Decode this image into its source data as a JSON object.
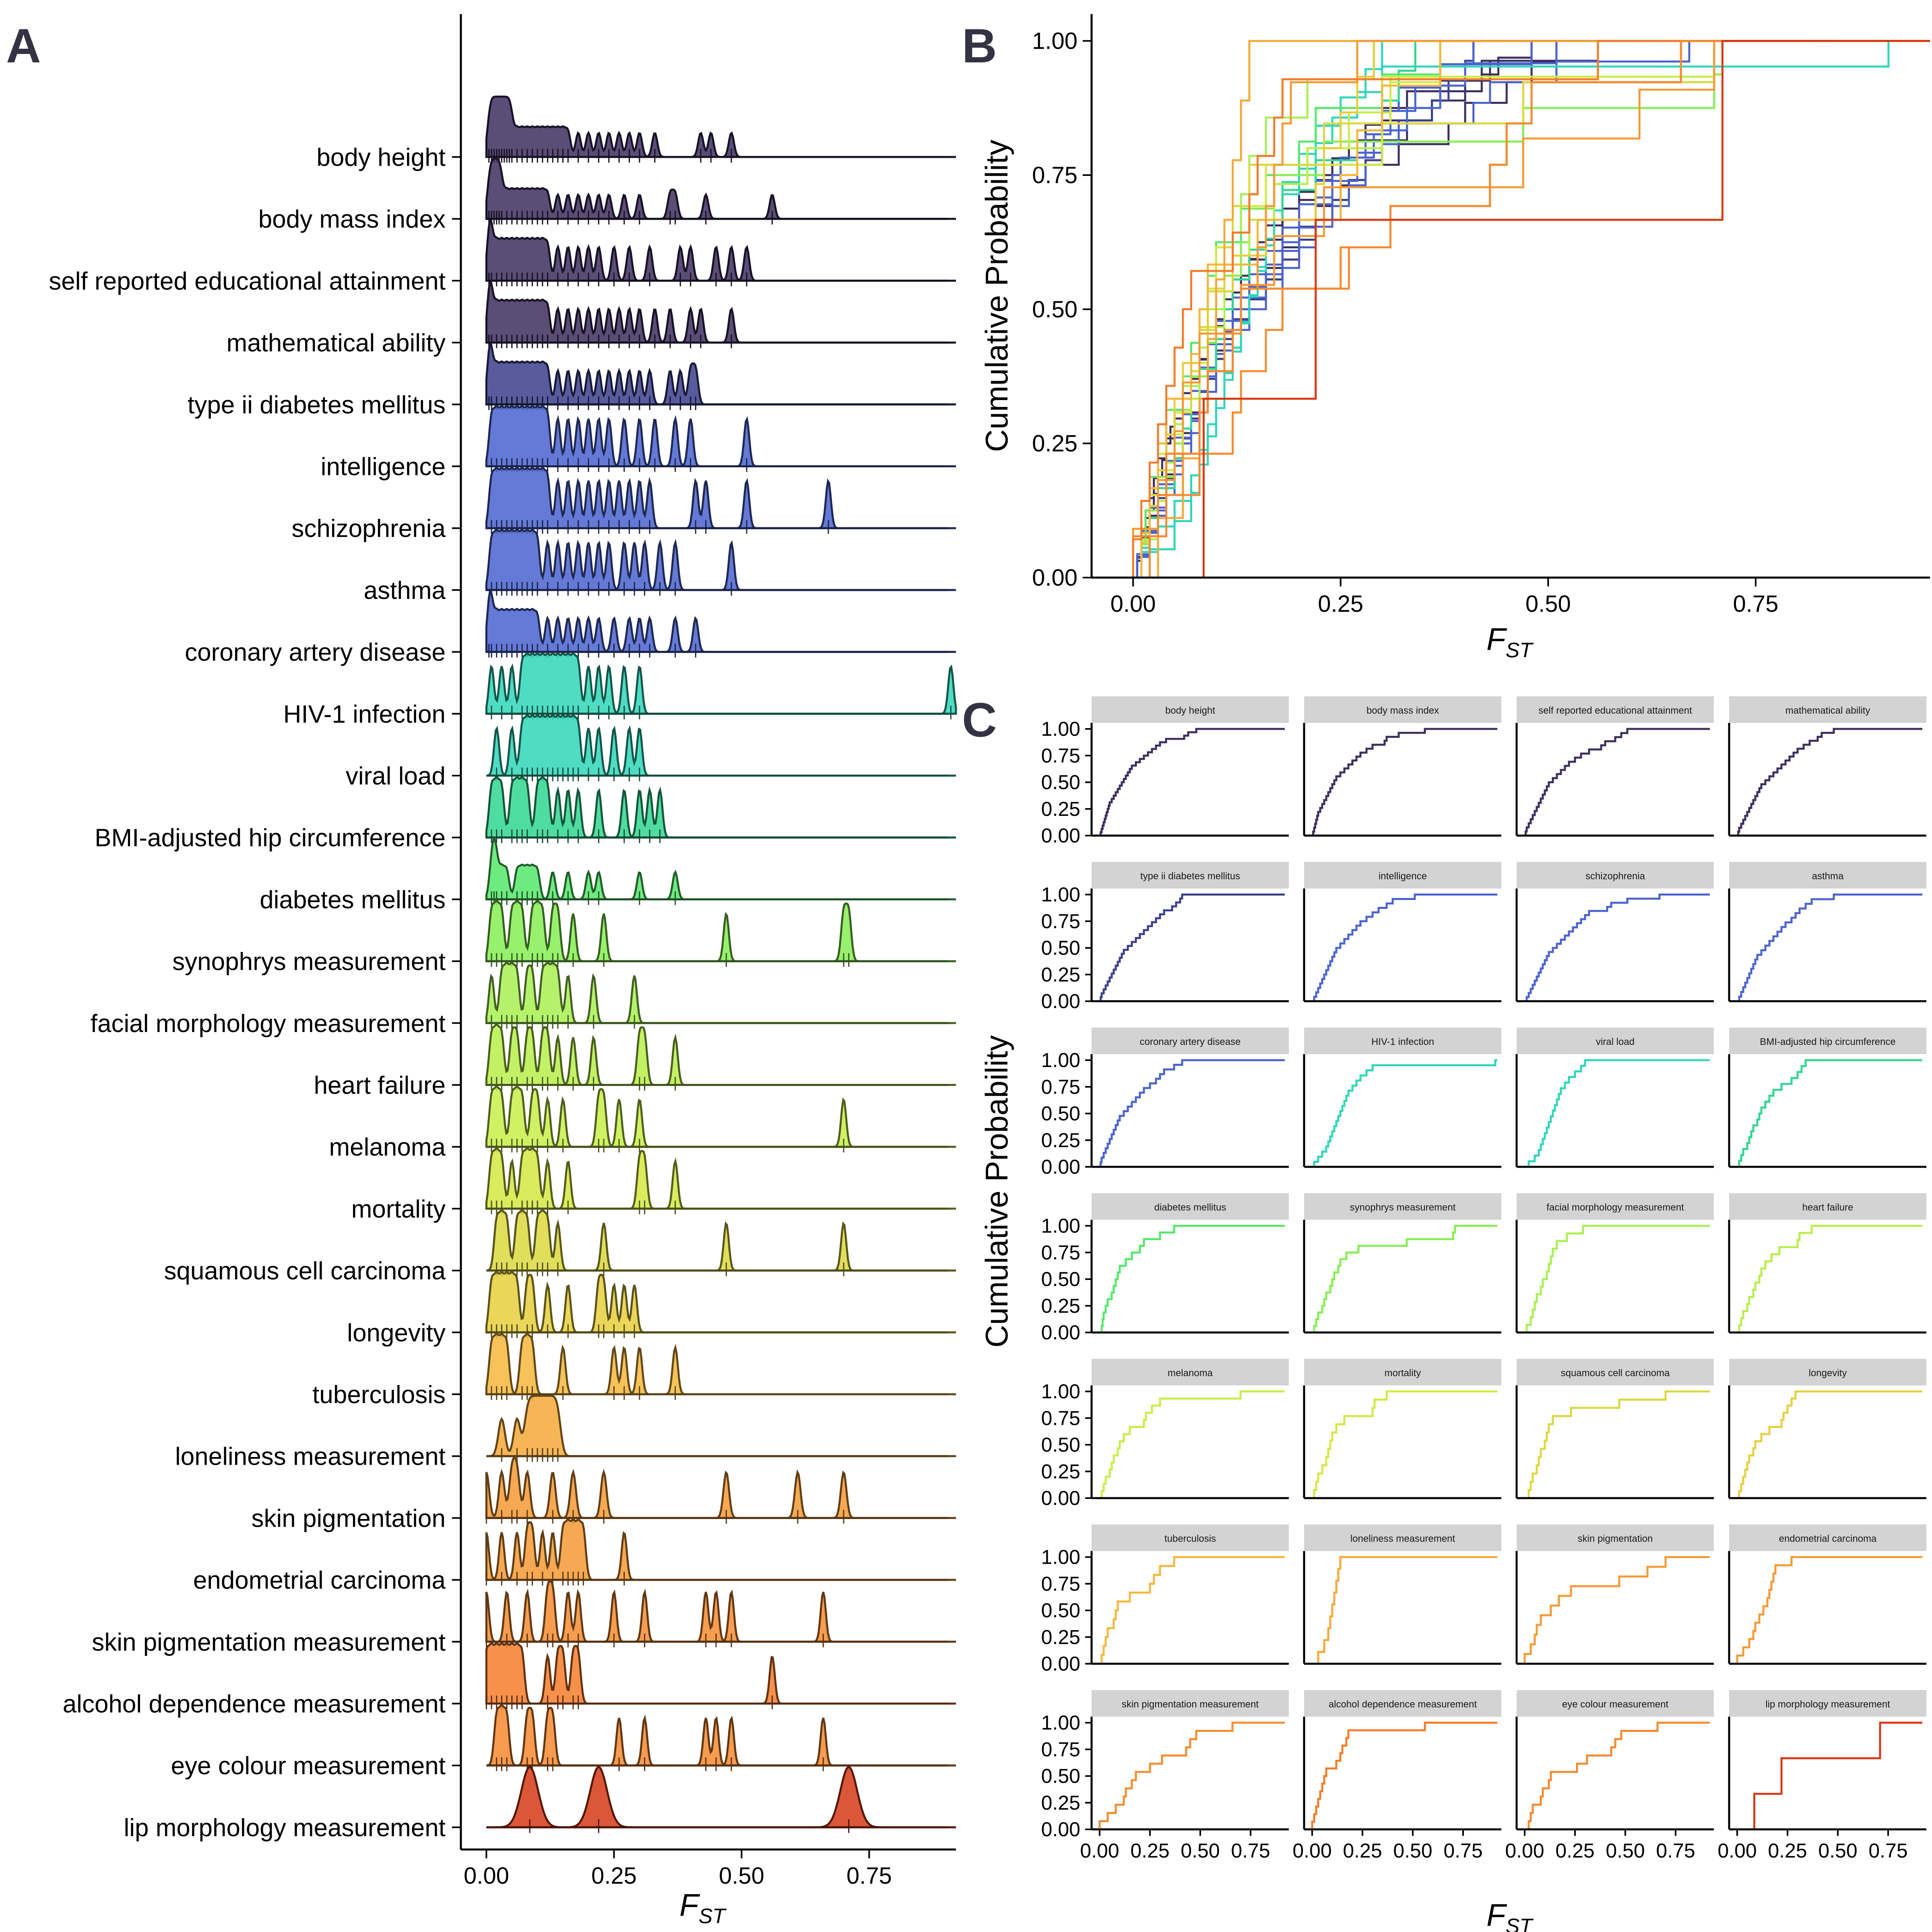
{
  "panel_letters": [
    "A",
    "B",
    "C"
  ],
  "chart_data": [
    {
      "panel": "A",
      "type": "area",
      "subtype": "ridgeline density with rug",
      "xlabel_main": "F",
      "xlabel_sub": "ST",
      "xlim": [
        -0.05,
        0.92
      ],
      "xticks": [
        "0.00",
        "0.25",
        "0.50",
        "0.75"
      ],
      "xtick_values": [
        0,
        0.25,
        0.5,
        0.75
      ],
      "traits": [
        {
          "name": "body height",
          "color": "#3d2e5e",
          "values": [
            0.005,
            0.01,
            0.015,
            0.02,
            0.025,
            0.03,
            0.035,
            0.04,
            0.045,
            0.05,
            0.06,
            0.07,
            0.08,
            0.09,
            0.1,
            0.11,
            0.12,
            0.13,
            0.14,
            0.15,
            0.16,
            0.18,
            0.2,
            0.22,
            0.24,
            0.26,
            0.28,
            0.3,
            0.33,
            0.42,
            0.44,
            0.48
          ]
        },
        {
          "name": "body mass index",
          "color": "#3d2e5e",
          "values": [
            0.005,
            0.01,
            0.015,
            0.02,
            0.025,
            0.03,
            0.04,
            0.05,
            0.06,
            0.07,
            0.08,
            0.09,
            0.1,
            0.11,
            0.12,
            0.14,
            0.16,
            0.18,
            0.2,
            0.22,
            0.24,
            0.27,
            0.3,
            0.36,
            0.37,
            0.43,
            0.56
          ]
        },
        {
          "name": "self reported educational attainment",
          "color": "#3d2e5e",
          "values": [
            0.005,
            0.01,
            0.02,
            0.03,
            0.04,
            0.05,
            0.06,
            0.07,
            0.08,
            0.09,
            0.1,
            0.11,
            0.12,
            0.14,
            0.16,
            0.18,
            0.2,
            0.22,
            0.25,
            0.28,
            0.32,
            0.38,
            0.4,
            0.45,
            0.48,
            0.51
          ]
        },
        {
          "name": "mathematical ability",
          "color": "#3d2e5e",
          "values": [
            0.005,
            0.01,
            0.02,
            0.03,
            0.04,
            0.05,
            0.06,
            0.07,
            0.08,
            0.09,
            0.1,
            0.11,
            0.12,
            0.14,
            0.16,
            0.18,
            0.2,
            0.22,
            0.24,
            0.26,
            0.28,
            0.3,
            0.33,
            0.36,
            0.4,
            0.42,
            0.48
          ]
        },
        {
          "name": "type ii diabetes mellitus",
          "color": "#3b3f8c",
          "values": [
            0.005,
            0.01,
            0.02,
            0.03,
            0.04,
            0.05,
            0.06,
            0.07,
            0.08,
            0.09,
            0.1,
            0.11,
            0.12,
            0.14,
            0.16,
            0.18,
            0.2,
            0.22,
            0.24,
            0.26,
            0.28,
            0.3,
            0.32,
            0.36,
            0.38,
            0.4,
            0.41
          ]
        },
        {
          "name": "intelligence",
          "color": "#4a63cf",
          "values": [
            0.01,
            0.02,
            0.03,
            0.04,
            0.05,
            0.06,
            0.07,
            0.08,
            0.09,
            0.1,
            0.11,
            0.12,
            0.14,
            0.16,
            0.18,
            0.2,
            0.22,
            0.24,
            0.27,
            0.3,
            0.33,
            0.37,
            0.4,
            0.51
          ]
        },
        {
          "name": "schizophrenia",
          "color": "#4a63cf",
          "values": [
            0.01,
            0.02,
            0.03,
            0.04,
            0.05,
            0.06,
            0.07,
            0.08,
            0.09,
            0.1,
            0.11,
            0.12,
            0.14,
            0.16,
            0.18,
            0.2,
            0.22,
            0.24,
            0.26,
            0.28,
            0.3,
            0.32,
            0.41,
            0.43,
            0.51,
            0.67
          ]
        },
        {
          "name": "asthma",
          "color": "#4a63cf",
          "values": [
            0.01,
            0.02,
            0.03,
            0.04,
            0.05,
            0.06,
            0.07,
            0.08,
            0.09,
            0.1,
            0.12,
            0.14,
            0.16,
            0.18,
            0.2,
            0.22,
            0.24,
            0.27,
            0.29,
            0.31,
            0.34,
            0.37,
            0.48
          ]
        },
        {
          "name": "coronary artery disease",
          "color": "#4a63cf",
          "values": [
            0.005,
            0.01,
            0.02,
            0.03,
            0.04,
            0.05,
            0.06,
            0.07,
            0.08,
            0.09,
            0.1,
            0.12,
            0.14,
            0.16,
            0.18,
            0.2,
            0.22,
            0.25,
            0.28,
            0.3,
            0.32,
            0.37,
            0.41
          ]
        },
        {
          "name": "HIV-1 infection",
          "color": "#2fd6b8",
          "values": [
            0.01,
            0.03,
            0.05,
            0.07,
            0.08,
            0.09,
            0.1,
            0.11,
            0.12,
            0.13,
            0.14,
            0.15,
            0.16,
            0.17,
            0.18,
            0.2,
            0.22,
            0.24,
            0.27,
            0.3,
            0.91
          ]
        },
        {
          "name": "viral load",
          "color": "#2fd6b8",
          "values": [
            0.02,
            0.05,
            0.07,
            0.08,
            0.09,
            0.1,
            0.11,
            0.12,
            0.13,
            0.14,
            0.15,
            0.16,
            0.17,
            0.18,
            0.2,
            0.22,
            0.25,
            0.28,
            0.3
          ]
        },
        {
          "name": "BMI-adjusted hip circumference",
          "color": "#30d690",
          "values": [
            0.01,
            0.02,
            0.03,
            0.05,
            0.06,
            0.07,
            0.08,
            0.1,
            0.11,
            0.12,
            0.14,
            0.16,
            0.18,
            0.22,
            0.27,
            0.3,
            0.32,
            0.34
          ]
        },
        {
          "name": "diabetes mellitus",
          "color": "#55e86a",
          "values": [
            0.01,
            0.015,
            0.02,
            0.03,
            0.04,
            0.06,
            0.07,
            0.08,
            0.09,
            0.1,
            0.13,
            0.16,
            0.2,
            0.22,
            0.3,
            0.37
          ]
        },
        {
          "name": "synophrys measurement",
          "color": "#86ee52",
          "values": [
            0.01,
            0.02,
            0.03,
            0.05,
            0.06,
            0.07,
            0.09,
            0.1,
            0.11,
            0.13,
            0.14,
            0.17,
            0.23,
            0.47,
            0.7,
            0.71
          ]
        },
        {
          "name": "facial morphology measurement",
          "color": "#a8f052",
          "values": [
            0.01,
            0.03,
            0.04,
            0.05,
            0.06,
            0.08,
            0.09,
            0.11,
            0.12,
            0.13,
            0.14,
            0.16,
            0.21,
            0.29
          ]
        },
        {
          "name": "heart failure",
          "color": "#b8ee4a",
          "values": [
            0.01,
            0.02,
            0.03,
            0.05,
            0.06,
            0.08,
            0.09,
            0.11,
            0.12,
            0.14,
            0.17,
            0.21,
            0.3,
            0.31,
            0.37
          ]
        },
        {
          "name": "melanoma",
          "color": "#c8ee48",
          "values": [
            0.01,
            0.02,
            0.03,
            0.05,
            0.06,
            0.07,
            0.09,
            0.1,
            0.12,
            0.15,
            0.22,
            0.23,
            0.26,
            0.3,
            0.7
          ]
        },
        {
          "name": "mortality",
          "color": "#d4e842",
          "values": [
            0.01,
            0.02,
            0.03,
            0.05,
            0.07,
            0.08,
            0.09,
            0.1,
            0.12,
            0.16,
            0.3,
            0.31,
            0.37
          ]
        },
        {
          "name": "squamous cell carcinoma",
          "color": "#dcd83e",
          "values": [
            0.02,
            0.03,
            0.04,
            0.06,
            0.07,
            0.08,
            0.1,
            0.11,
            0.12,
            0.14,
            0.23,
            0.47,
            0.7
          ]
        },
        {
          "name": "longevity",
          "color": "#e6cf3c",
          "values": [
            0.01,
            0.02,
            0.03,
            0.04,
            0.05,
            0.06,
            0.08,
            0.09,
            0.12,
            0.16,
            0.22,
            0.23,
            0.25,
            0.27,
            0.29
          ]
        },
        {
          "name": "tuberculosis",
          "color": "#f5b73c",
          "values": [
            0.01,
            0.02,
            0.03,
            0.04,
            0.07,
            0.08,
            0.09,
            0.15,
            0.25,
            0.27,
            0.3,
            0.37
          ]
        },
        {
          "name": "loneliness measurement",
          "color": "#f5a938",
          "values": [
            0.03,
            0.06,
            0.08,
            0.09,
            0.1,
            0.11,
            0.12,
            0.13,
            0.14
          ]
        },
        {
          "name": "skin pigmentation",
          "color": "#f59a34",
          "values": [
            0.0,
            0.03,
            0.05,
            0.06,
            0.08,
            0.13,
            0.17,
            0.23,
            0.47,
            0.61,
            0.7
          ]
        },
        {
          "name": "endometrial carcinoma",
          "color": "#f59a34",
          "values": [
            0.0,
            0.03,
            0.06,
            0.08,
            0.09,
            0.11,
            0.13,
            0.15,
            0.16,
            0.17,
            0.18,
            0.19,
            0.27
          ]
        },
        {
          "name": "skin pigmentation measurement",
          "color": "#f58c30",
          "values": [
            0.0,
            0.04,
            0.08,
            0.12,
            0.13,
            0.16,
            0.18,
            0.25,
            0.31,
            0.43,
            0.45,
            0.48,
            0.66
          ]
        },
        {
          "name": "alcohol dependence measurement",
          "color": "#f57c2a",
          "values": [
            0.0,
            0.01,
            0.02,
            0.03,
            0.04,
            0.05,
            0.06,
            0.07,
            0.12,
            0.14,
            0.15,
            0.17,
            0.18,
            0.56
          ]
        },
        {
          "name": "eye colour measurement",
          "color": "#f58a30",
          "values": [
            0.02,
            0.03,
            0.04,
            0.08,
            0.09,
            0.12,
            0.13,
            0.26,
            0.31,
            0.43,
            0.45,
            0.48,
            0.66
          ]
        },
        {
          "name": "lip morphology measurement",
          "color": "#d63a14",
          "values": [
            0.085,
            0.22,
            0.71
          ]
        }
      ]
    },
    {
      "panel": "B",
      "type": "line",
      "subtype": "empirical cumulative distribution (all traits overlaid)",
      "ylabel": "Cumulative Probability",
      "xlabel_main": "F",
      "xlabel_sub": "ST",
      "xlim": [
        -0.05,
        0.96
      ],
      "ylim": [
        0,
        1.05
      ],
      "xticks": [
        "0.00",
        "0.25",
        "0.50",
        "0.75"
      ],
      "yticks": [
        "0.00",
        "0.25",
        "0.50",
        "0.75",
        "1.00"
      ]
    },
    {
      "panel": "C",
      "type": "line",
      "subtype": "faceted empirical cumulative distributions (one facet per trait)",
      "ylabel": "Cumulative Probability",
      "xlabel_main": "F",
      "xlabel_sub": "ST",
      "xticks": [
        "0.00",
        "0.25",
        "0.50",
        "0.75"
      ],
      "yticks": [
        "0.00",
        "0.25",
        "0.50",
        "0.75",
        "1.00"
      ]
    }
  ]
}
